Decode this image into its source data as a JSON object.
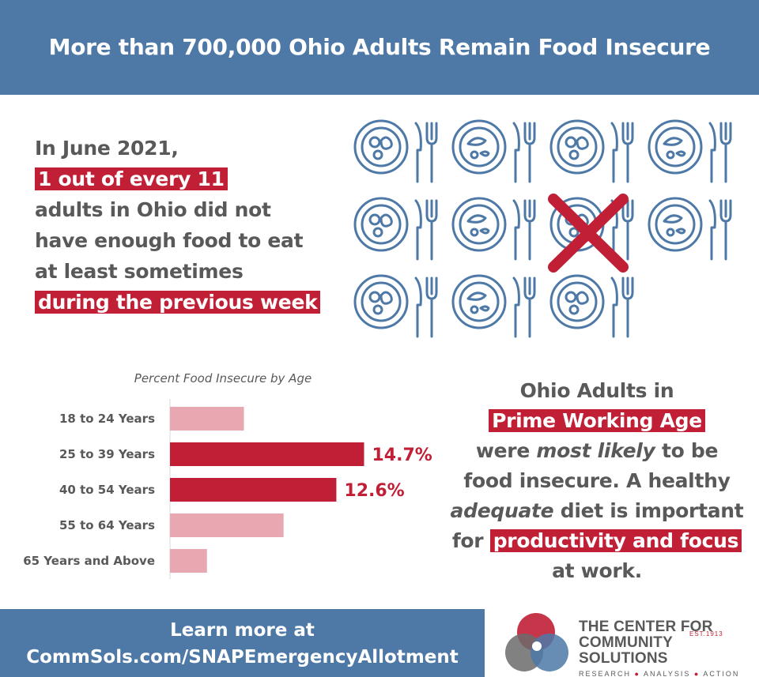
{
  "header": {
    "title": "More than 700,000 Ohio Adults Remain Food Insecure"
  },
  "stat": {
    "line1": "In June 2021,",
    "highlight1": "1 out of every 11",
    "line2": "adults in Ohio did not",
    "line3": "have enough food to eat",
    "line4": "at least sometimes",
    "highlight2": "during the previous week"
  },
  "plates": {
    "icon": "plate-cutlery-icon",
    "count": 11,
    "crossed_index": 6,
    "colors": {
      "plate": "#4e79a7",
      "cross": "#c01f36"
    }
  },
  "chart_data": {
    "type": "bar",
    "orientation": "horizontal",
    "title": "Percent Food Insecure by Age",
    "categories": [
      "18 to 24 Years",
      "25 to 39 Years",
      "40 to 54 Years",
      "55 to 64 Years",
      "65 Years and Above"
    ],
    "values": [
      5.6,
      14.7,
      12.6,
      8.6,
      2.8
    ],
    "data_labels": [
      "",
      "14.7%",
      "12.6%",
      "",
      ""
    ],
    "highlighted": [
      false,
      true,
      true,
      false,
      false
    ],
    "xlim": [
      0,
      20
    ],
    "grid": false,
    "colors": {
      "highlight": "#c01f36",
      "muted": "#e7a8b1",
      "label": "#c01f36"
    }
  },
  "blurb": {
    "line1": "Ohio Adults in",
    "highlight1": "Prime Working Age",
    "line2a": "were",
    "line2em": "most likely",
    "line2b": "to be",
    "line3": "food insecure. A healthy",
    "line4em": "adequate",
    "line4b": "diet is important",
    "line5a": "for",
    "highlight2": "productivity and focus",
    "line6": "at work."
  },
  "footer": {
    "line1": "Learn more at",
    "line2": "CommSols.com/SNAPEmergencyAllotment"
  },
  "logo": {
    "line1": "THE CENTER FOR",
    "line2": "COMMUNITY SOLUTIONS",
    "est": "EST.1913",
    "tag1": "RESEARCH",
    "tag2": "ANALYSIS",
    "tag3": "ACTION",
    "colors": {
      "red": "#c01f36",
      "blue": "#4e79a7",
      "gray": "#6b6b6b"
    }
  }
}
